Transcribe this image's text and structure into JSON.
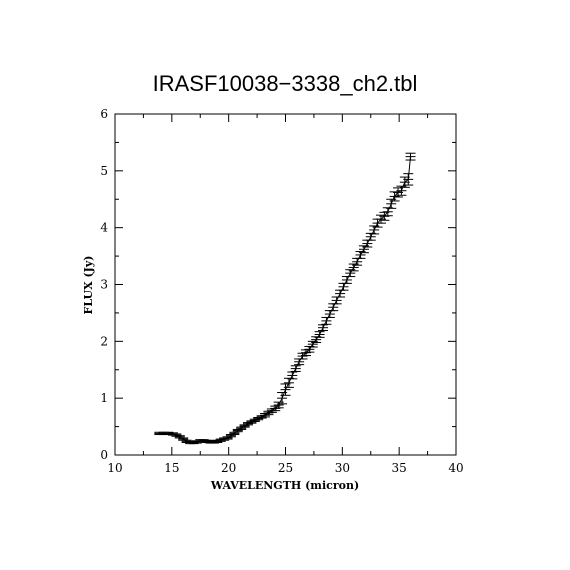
{
  "chart_data": {
    "type": "scatter",
    "title": "IRASF10038−3338_ch2.tbl",
    "xlabel": "WAVELENGTH (micron)",
    "ylabel": "FLUX (Jy)",
    "xlim": [
      10,
      40
    ],
    "ylim": [
      0,
      6
    ],
    "xticks": [
      "10",
      "15",
      "20",
      "25",
      "30",
      "35",
      "40"
    ],
    "yticks": [
      "0",
      "1",
      "2",
      "3",
      "4",
      "5",
      "6"
    ],
    "grid": false,
    "legend": "none",
    "series": [
      {
        "x": [
          13.9,
          14.3,
          14.7,
          15.1,
          15.4,
          15.7,
          16.0,
          16.3,
          16.6,
          16.9,
          17.2,
          17.5,
          17.8,
          18.1,
          18.4,
          18.7,
          19.0,
          19.3,
          19.6,
          19.9,
          20.2,
          20.5,
          20.8,
          21.1,
          21.4,
          21.7,
          22.0,
          22.3,
          22.6,
          22.9,
          23.2,
          23.5,
          23.8,
          24.1,
          24.4,
          24.7,
          25.0,
          25.3,
          25.6,
          25.9,
          26.2,
          26.5,
          26.8,
          27.1,
          27.4,
          27.7,
          28.0,
          28.3,
          28.6,
          28.9,
          29.2,
          29.5,
          29.8,
          30.1,
          30.4,
          30.7,
          31.0,
          31.3,
          31.6,
          31.9,
          32.2,
          32.5,
          32.8,
          33.1,
          33.4,
          33.7,
          34.0,
          34.3,
          34.6,
          34.9,
          35.2,
          35.5,
          35.8,
          36.0
        ],
        "y": [
          0.38,
          0.38,
          0.38,
          0.37,
          0.35,
          0.32,
          0.28,
          0.24,
          0.22,
          0.22,
          0.23,
          0.25,
          0.25,
          0.24,
          0.23,
          0.23,
          0.24,
          0.26,
          0.28,
          0.3,
          0.34,
          0.38,
          0.43,
          0.47,
          0.51,
          0.55,
          0.58,
          0.61,
          0.64,
          0.67,
          0.7,
          0.74,
          0.78,
          0.82,
          0.88,
          1.0,
          1.15,
          1.27,
          1.4,
          1.52,
          1.64,
          1.74,
          1.8,
          1.86,
          1.95,
          2.03,
          2.12,
          2.24,
          2.36,
          2.48,
          2.6,
          2.72,
          2.84,
          2.96,
          3.08,
          3.2,
          3.3,
          3.4,
          3.52,
          3.62,
          3.72,
          3.84,
          3.96,
          4.08,
          4.15,
          4.2,
          4.28,
          4.42,
          4.55,
          4.62,
          4.65,
          4.8,
          4.85,
          5.25
        ],
        "yerr": [
          0.02,
          0.02,
          0.02,
          0.02,
          0.02,
          0.02,
          0.02,
          0.02,
          0.02,
          0.02,
          0.02,
          0.02,
          0.02,
          0.02,
          0.02,
          0.02,
          0.02,
          0.02,
          0.02,
          0.02,
          0.02,
          0.02,
          0.02,
          0.02,
          0.02,
          0.02,
          0.02,
          0.02,
          0.02,
          0.02,
          0.03,
          0.03,
          0.03,
          0.04,
          0.05,
          0.1,
          0.1,
          0.08,
          0.06,
          0.05,
          0.05,
          0.05,
          0.05,
          0.05,
          0.05,
          0.05,
          0.05,
          0.05,
          0.06,
          0.06,
          0.06,
          0.06,
          0.06,
          0.06,
          0.06,
          0.06,
          0.06,
          0.06,
          0.06,
          0.06,
          0.06,
          0.06,
          0.07,
          0.07,
          0.07,
          0.07,
          0.07,
          0.08,
          0.08,
          0.08,
          0.08,
          0.09,
          0.1,
          0.06
        ]
      }
    ]
  }
}
